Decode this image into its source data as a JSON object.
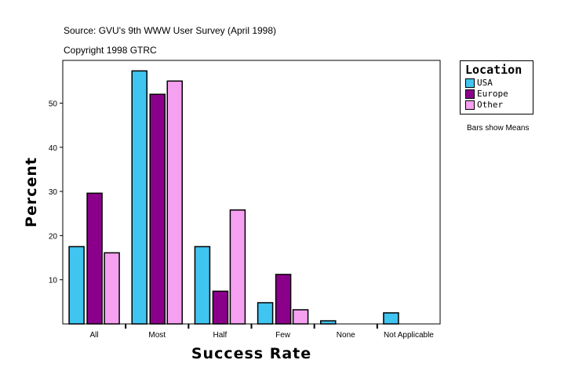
{
  "header": {
    "source": "Source: GVU's 9th WWW User Survey (April 1998)",
    "copyright": "Copyright 1998 GTRC"
  },
  "note": "Bars show Means",
  "chart_data": {
    "type": "bar",
    "xlabel": "Success Rate",
    "ylabel": "Percent",
    "ylim": [
      0,
      60
    ],
    "yticks": [
      10,
      20,
      30,
      40,
      50
    ],
    "categories": [
      "All",
      "Most",
      "Half",
      "Few",
      "None",
      "Not Applicable"
    ],
    "legend_title": "Location",
    "legend_placement": "right",
    "grid": false,
    "series": [
      {
        "name": "USA",
        "color": "#40c4f0",
        "values": [
          17.5,
          57.3,
          17.5,
          4.8,
          0.7,
          2.5
        ]
      },
      {
        "name": "Europe",
        "color": "#8b008b",
        "values": [
          29.6,
          52.0,
          7.4,
          11.2,
          0,
          0
        ]
      },
      {
        "name": "Other",
        "color": "#f5a0f0",
        "values": [
          16.1,
          55.0,
          25.8,
          3.2,
          0,
          0
        ]
      }
    ]
  }
}
